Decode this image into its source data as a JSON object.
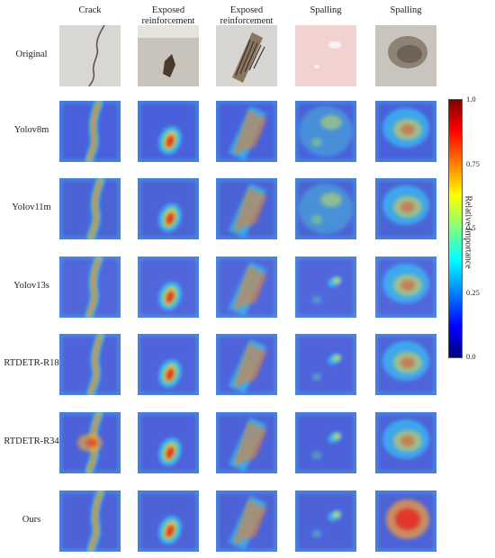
{
  "columns": [
    {
      "lines": [
        "Crack"
      ],
      "type": "crack"
    },
    {
      "lines": [
        "Exposed",
        "reinforcement"
      ],
      "type": "exposed1"
    },
    {
      "lines": [
        "Exposed",
        "reinforcement"
      ],
      "type": "exposed2"
    },
    {
      "lines": [
        "Spalling"
      ],
      "type": "spall1"
    },
    {
      "lines": [
        "Spalling"
      ],
      "type": "spall2"
    }
  ],
  "rows": [
    {
      "label": "Original",
      "kind": "original"
    },
    {
      "label": "Yolov8m",
      "kind": "heat"
    },
    {
      "label": "Yolov11m",
      "kind": "heat"
    },
    {
      "label": "Yolov13s",
      "kind": "heat"
    },
    {
      "label": "RTDETR-R18",
      "kind": "heat"
    },
    {
      "label": "RTDETR-R34",
      "kind": "heat"
    },
    {
      "label": "Ours",
      "kind": "heat"
    }
  ],
  "colorbar": {
    "title": "Relative Importance",
    "ticks": [
      "1.0",
      "0.75",
      "0.5",
      "0.25",
      "0.0"
    ],
    "tick_values": [
      1.0,
      0.75,
      0.5,
      0.25,
      0.0
    ],
    "colormap": "jet"
  }
}
